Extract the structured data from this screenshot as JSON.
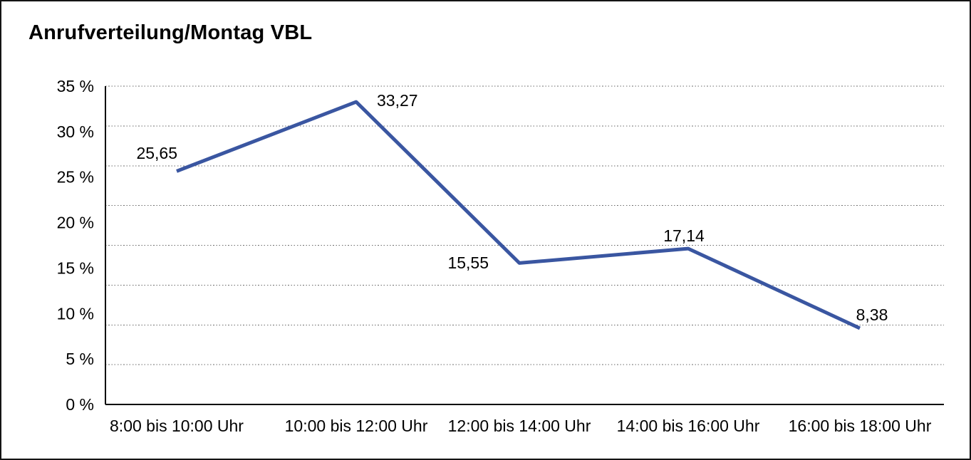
{
  "window": {
    "background_color": "#ffffff",
    "border_color": "#141414"
  },
  "chart_data": {
    "type": "line",
    "title": "Anrufverteilung/Montag VBL",
    "xlabel": "",
    "ylabel": "",
    "categories": [
      "8:00 bis 10:00 Uhr",
      "10:00 bis 12:00 Uhr",
      "12:00 bis 14:00 Uhr",
      "14:00 bis 16:00 Uhr",
      "16:00 bis 18:00 Uhr"
    ],
    "values": [
      25.65,
      33.27,
      15.55,
      17.14,
      8.38
    ],
    "point_labels": [
      "25,65",
      "33,27",
      "15,55",
      "17,14",
      "8,38"
    ],
    "y_tick_labels": [
      "0 %",
      "5 %",
      "10 %",
      "15 %",
      "20 %",
      "25 %",
      "30 %",
      "35 %"
    ],
    "y_tick_values": [
      0,
      5,
      10,
      15,
      20,
      25,
      30,
      35
    ],
    "ylim": [
      0,
      35
    ],
    "grid": "horizontal-dotted",
    "gridline_intervals": 8,
    "legend": "none",
    "line_color": "#3A56A1",
    "axis_color": "#000000",
    "gridline_color": "#6e6e6e",
    "text_color": "#000000"
  }
}
